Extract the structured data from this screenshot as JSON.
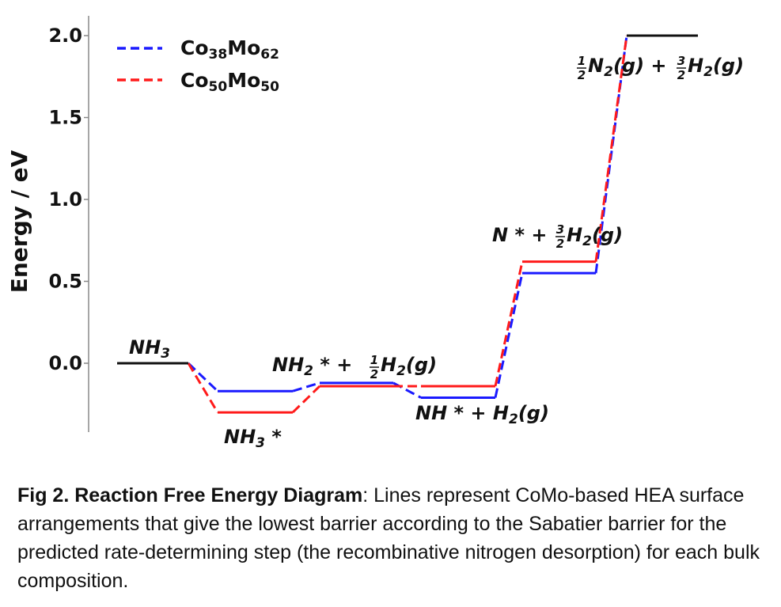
{
  "chart_data": {
    "type": "line",
    "ylabel": "Energy / eV",
    "ylim": [
      -0.42,
      2.1
    ],
    "yticks": [
      0.0,
      0.5,
      1.0,
      1.5,
      2.0
    ],
    "ytick_labels": [
      "0.0",
      "0.5",
      "1.0",
      "1.5",
      "2.0"
    ],
    "grid": false,
    "legend_position": "top-left",
    "steps": [
      "NH3",
      "NH3*",
      "NH2* + 1/2 H2(g)",
      "NH* + H2(g)",
      "N* + 3/2 H2(g)",
      "1/2 N2(g) + 3/2 H2(g)"
    ],
    "shared_levels": {
      "initial": {
        "label": "NH3",
        "value": 0.0
      },
      "final": {
        "label": "1/2 N2(g) + 3/2 H2(g)",
        "value": 2.0
      }
    },
    "series": [
      {
        "name": "Co38Mo62",
        "name_main": [
          "Co",
          "Mo"
        ],
        "name_sub": [
          "38",
          "62"
        ],
        "color": "#1a1aff",
        "values": [
          0.0,
          -0.17,
          -0.12,
          -0.21,
          0.55,
          2.0
        ]
      },
      {
        "name": "Co50Mo50",
        "name_main": [
          "Co",
          "Mo"
        ],
        "name_sub": [
          "50",
          "50"
        ],
        "color": "#ff1a1a",
        "values": [
          0.0,
          -0.3,
          -0.14,
          -0.14,
          0.62,
          2.0
        ]
      }
    ],
    "annotations": {
      "nh3": {
        "main": "NH",
        "sub": "3"
      },
      "nh3star": {
        "main": "NH",
        "sub": "3",
        "tail": " *"
      },
      "nh2": {
        "a": "NH",
        "sub": "2",
        "b": " * + ",
        "num": "1",
        "den": "2",
        "c": "H",
        "sub2": "2",
        "d": "(g)"
      },
      "nh": {
        "text": "NH * + H",
        "sub": "2",
        "d": "(g)"
      },
      "n": {
        "a": "N * + ",
        "num": "3",
        "den": "2",
        "c": "H",
        "sub": "2",
        "d": "(g)"
      },
      "n2": {
        "num1": "1",
        "den1": "2",
        "a": "N",
        "sub1": "2",
        "b": "(g) + ",
        "num2": "3",
        "den2": "2",
        "c": "H",
        "sub2": "2",
        "d": "(g)"
      }
    }
  },
  "caption": {
    "bold": "Fig 2. Reaction Free Energy Diagram",
    "text": ": Lines represent CoMo-based HEA surface arrangements that give the lowest barrier according to the Sabatier barrier for the predicted rate-determining step (the recombinative nitrogen desorption) for each bulk composition."
  }
}
